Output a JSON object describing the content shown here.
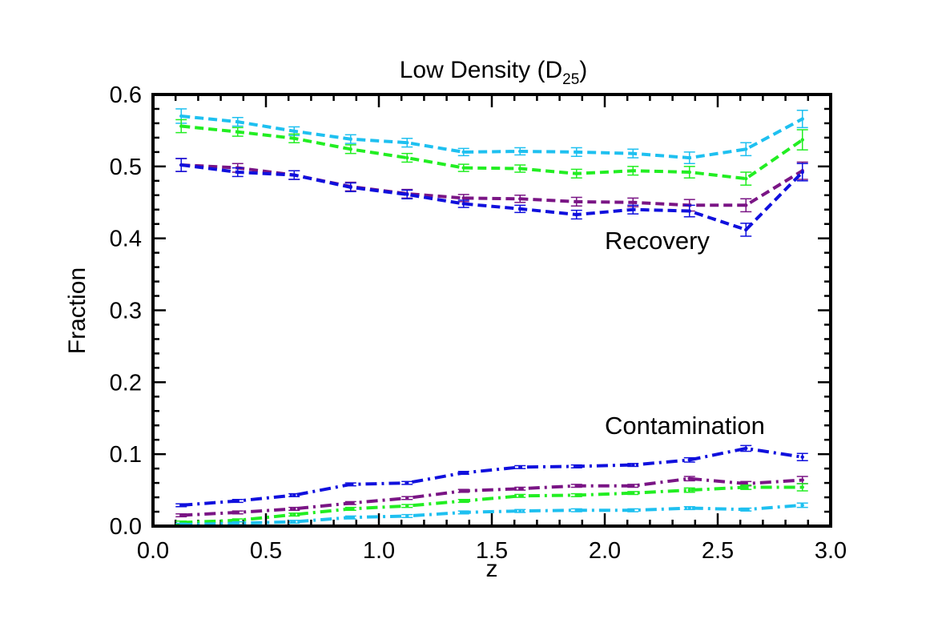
{
  "chart_data": {
    "type": "line",
    "title": "Low Density (D",
    "title_subscript": "25",
    "title_suffix": ")",
    "xlabel": "z",
    "ylabel": "Fraction",
    "xlim": [
      0.0,
      3.0
    ],
    "ylim": [
      0.0,
      0.6
    ],
    "x_ticks": [
      "0.0",
      "0.5",
      "1.0",
      "1.5",
      "2.0",
      "2.5",
      "3.0"
    ],
    "y_ticks": [
      "0.0",
      "0.1",
      "0.2",
      "0.3",
      "0.4",
      "0.5",
      "0.6"
    ],
    "annotations": [
      {
        "text": "Recovery",
        "x": 2.0,
        "y": 0.385
      },
      {
        "text": "Contamination",
        "x": 2.0,
        "y": 0.128
      }
    ],
    "x": [
      0.125,
      0.375,
      0.625,
      0.875,
      1.125,
      1.375,
      1.625,
      1.875,
      2.125,
      2.375,
      2.625,
      2.875
    ],
    "series": [
      {
        "group": "recovery",
        "color": "#1ec0f0",
        "dash": "dashed",
        "values": [
          0.57,
          0.562,
          0.549,
          0.538,
          0.533,
          0.52,
          0.521,
          0.52,
          0.518,
          0.512,
          0.524,
          0.566
        ],
        "errors": [
          0.01,
          0.006,
          0.006,
          0.006,
          0.006,
          0.005,
          0.005,
          0.006,
          0.006,
          0.008,
          0.009,
          0.012
        ]
      },
      {
        "group": "recovery",
        "color": "#22ee22",
        "dash": "dashed",
        "values": [
          0.556,
          0.548,
          0.539,
          0.524,
          0.512,
          0.498,
          0.497,
          0.49,
          0.494,
          0.492,
          0.483,
          0.537
        ],
        "errors": [
          0.009,
          0.006,
          0.006,
          0.006,
          0.006,
          0.005,
          0.005,
          0.006,
          0.006,
          0.008,
          0.009,
          0.014
        ]
      },
      {
        "group": "recovery",
        "color": "#7a1585",
        "dash": "dashed",
        "values": [
          0.502,
          0.498,
          0.488,
          0.472,
          0.462,
          0.456,
          0.455,
          0.451,
          0.45,
          0.446,
          0.446,
          0.494
        ],
        "errors": [
          0.009,
          0.006,
          0.006,
          0.006,
          0.006,
          0.005,
          0.005,
          0.006,
          0.006,
          0.008,
          0.009,
          0.012
        ]
      },
      {
        "group": "recovery",
        "color": "#1010dd",
        "dash": "dashed",
        "values": [
          0.502,
          0.492,
          0.488,
          0.471,
          0.461,
          0.448,
          0.441,
          0.433,
          0.44,
          0.438,
          0.412,
          0.492
        ],
        "errors": [
          0.009,
          0.006,
          0.006,
          0.006,
          0.006,
          0.005,
          0.005,
          0.006,
          0.006,
          0.008,
          0.009,
          0.012
        ]
      },
      {
        "group": "contamination",
        "color": "#1010dd",
        "dash": "dashdot",
        "values": [
          0.029,
          0.035,
          0.043,
          0.058,
          0.06,
          0.074,
          0.082,
          0.083,
          0.085,
          0.092,
          0.108,
          0.096
        ],
        "errors": [
          0.002,
          0.002,
          0.002,
          0.002,
          0.002,
          0.002,
          0.002,
          0.002,
          0.002,
          0.003,
          0.004,
          0.005
        ]
      },
      {
        "group": "contamination",
        "color": "#7a1585",
        "dash": "dashdot",
        "values": [
          0.015,
          0.019,
          0.024,
          0.032,
          0.039,
          0.049,
          0.052,
          0.056,
          0.056,
          0.066,
          0.059,
          0.064
        ],
        "errors": [
          0.002,
          0.002,
          0.002,
          0.002,
          0.002,
          0.002,
          0.002,
          0.002,
          0.002,
          0.003,
          0.003,
          0.005
        ]
      },
      {
        "group": "contamination",
        "color": "#22ee22",
        "dash": "dashdot",
        "values": [
          0.005,
          0.008,
          0.016,
          0.024,
          0.028,
          0.035,
          0.042,
          0.043,
          0.046,
          0.05,
          0.054,
          0.054
        ],
        "errors": [
          0.002,
          0.002,
          0.002,
          0.002,
          0.002,
          0.002,
          0.002,
          0.002,
          0.002,
          0.003,
          0.003,
          0.005
        ]
      },
      {
        "group": "contamination",
        "color": "#1ec0f0",
        "dash": "dashdot",
        "values": [
          0.002,
          0.004,
          0.006,
          0.012,
          0.014,
          0.019,
          0.021,
          0.022,
          0.022,
          0.025,
          0.023,
          0.029
        ],
        "errors": [
          0.002,
          0.002,
          0.002,
          0.002,
          0.002,
          0.002,
          0.002,
          0.002,
          0.002,
          0.002,
          0.002,
          0.003
        ]
      }
    ]
  }
}
